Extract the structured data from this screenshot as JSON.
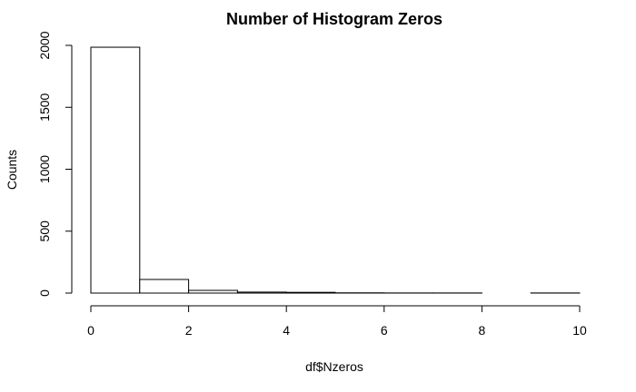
{
  "chart_data": {
    "type": "bar",
    "title": "Number of Histogram Zeros",
    "xlabel": "df$Nzeros",
    "ylabel": "Counts",
    "xlim": [
      0,
      10
    ],
    "ylim": [
      0,
      2000
    ],
    "x_ticks": [
      0,
      2,
      4,
      6,
      8,
      10
    ],
    "y_ticks": [
      0,
      500,
      1000,
      1500,
      2000
    ],
    "grid": false,
    "bins": [
      {
        "from": 0,
        "to": 1,
        "value": 1985
      },
      {
        "from": 1,
        "to": 2,
        "value": 110
      },
      {
        "from": 2,
        "to": 3,
        "value": 22
      },
      {
        "from": 3,
        "to": 4,
        "value": 8
      },
      {
        "from": 4,
        "to": 5,
        "value": 6
      },
      {
        "from": 5,
        "to": 6,
        "value": 2
      },
      {
        "from": 6,
        "to": 7,
        "value": 1
      },
      {
        "from": 7,
        "to": 8,
        "value": 1
      },
      {
        "from": 8,
        "to": 9,
        "value": 0
      },
      {
        "from": 9,
        "to": 10,
        "value": 1
      }
    ]
  }
}
